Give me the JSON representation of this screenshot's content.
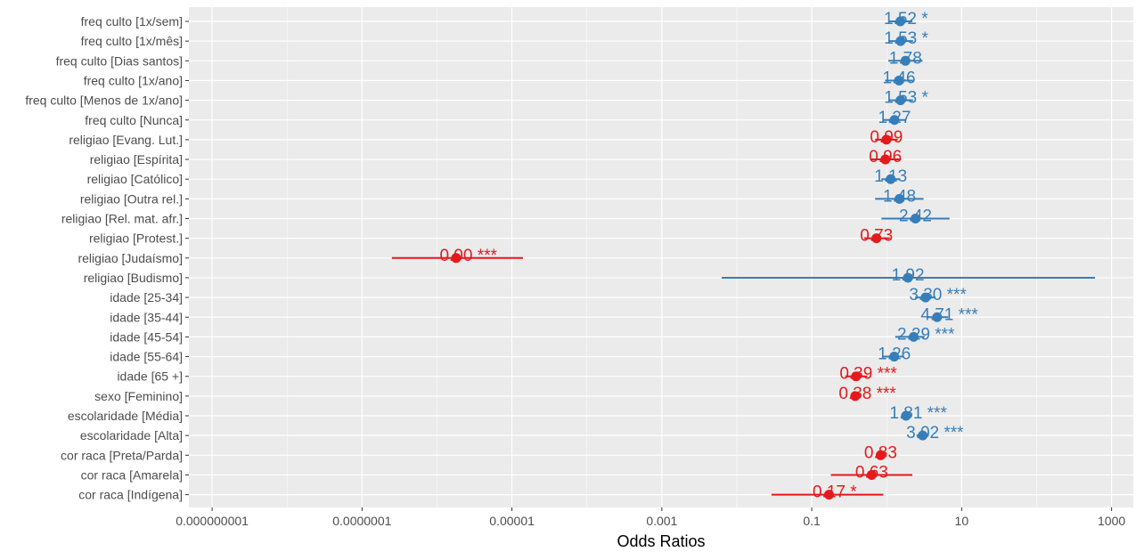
{
  "chart_data": {
    "type": "forest",
    "xlabel": "Odds Ratios",
    "x_scale": "log10",
    "xlim": [
      1e-09,
      1000
    ],
    "x_ticks": [
      {
        "value": 1e-09,
        "label": "0.000000001"
      },
      {
        "value": 1e-07,
        "label": "0.0000001"
      },
      {
        "value": 1e-05,
        "label": "0.00001"
      },
      {
        "value": 0.001,
        "label": "0.001"
      },
      {
        "value": 0.1,
        "label": "0.1"
      },
      {
        "value": 10,
        "label": "10"
      },
      {
        "value": 1000,
        "label": "1000"
      }
    ],
    "grid": true,
    "colors": {
      "positive": "#377eb8",
      "negative": "#e41a1c",
      "panel": "#ebebeb",
      "grid": "#ffffff"
    },
    "rows": [
      {
        "term": "freq culto [1x/sem]",
        "or": 1.52,
        "low": 1.05,
        "high": 2.2,
        "label": "1.52 *"
      },
      {
        "term": "freq culto [1x/mês]",
        "or": 1.53,
        "low": 1.05,
        "high": 2.25,
        "label": "1.53 *"
      },
      {
        "term": "freq culto [Dias santos]",
        "or": 1.78,
        "low": 1.05,
        "high": 3.0,
        "label": "1.78"
      },
      {
        "term": "freq culto [1x/ano]",
        "or": 1.46,
        "low": 0.95,
        "high": 2.25,
        "label": "1.46"
      },
      {
        "term": "freq culto [Menos de 1x/ano]",
        "or": 1.53,
        "low": 1.05,
        "high": 2.25,
        "label": "1.53 *"
      },
      {
        "term": "freq culto [Nunca]",
        "or": 1.27,
        "low": 0.9,
        "high": 1.8,
        "label": "1.27"
      },
      {
        "term": "religiao [Evang. Lut.]",
        "or": 0.99,
        "low": 0.7,
        "high": 1.4,
        "label": "0.99"
      },
      {
        "term": "religiao [Espírita]",
        "or": 0.96,
        "low": 0.6,
        "high": 1.55,
        "label": "0.96"
      },
      {
        "term": "religiao [Católico]",
        "or": 1.13,
        "low": 0.85,
        "high": 1.5,
        "label": "1.13"
      },
      {
        "term": "religiao [Outra rel.]",
        "or": 1.48,
        "low": 0.7,
        "high": 3.1,
        "label": "1.48"
      },
      {
        "term": "religiao [Rel. mat. afr.]",
        "or": 2.42,
        "low": 0.85,
        "high": 6.9,
        "label": "2.42"
      },
      {
        "term": "religiao [Protest.]",
        "or": 0.73,
        "low": 0.5,
        "high": 1.1,
        "label": "0.73"
      },
      {
        "term": "religiao [Judaísmo]",
        "or": 1.8e-06,
        "low": 2.5e-07,
        "high": 1.4e-05,
        "label": "0.00 ***"
      },
      {
        "term": "religiao [Budismo]",
        "or": 1.92,
        "low": 0.0063,
        "high": 600,
        "label": "1.92"
      },
      {
        "term": "idade [25-34]",
        "or": 3.3,
        "low": 2.4,
        "high": 4.5,
        "label": "3.30 ***"
      },
      {
        "term": "idade [35-44]",
        "or": 4.71,
        "low": 3.4,
        "high": 6.6,
        "label": "4.71 ***"
      },
      {
        "term": "idade [45-54]",
        "or": 2.29,
        "low": 1.3,
        "high": 3.2,
        "label": "2.29 ***"
      },
      {
        "term": "idade [55-64]",
        "or": 1.26,
        "low": 0.9,
        "high": 1.7,
        "label": "1.26"
      },
      {
        "term": "idade [65 +]",
        "or": 0.39,
        "low": 0.28,
        "high": 0.55,
        "label": "0.39 ***"
      },
      {
        "term": "sexo [Feminino]",
        "or": 0.38,
        "low": 0.33,
        "high": 0.45,
        "label": "0.38 ***"
      },
      {
        "term": "escolaridade [Média]",
        "or": 1.81,
        "low": 1.55,
        "high": 2.1,
        "label": "1.81 ***"
      },
      {
        "term": "escolaridade [Alta]",
        "or": 3.02,
        "low": 2.5,
        "high": 3.65,
        "label": "3.02 ***"
      },
      {
        "term": "cor raca [Preta/Parda]",
        "or": 0.83,
        "low": 0.72,
        "high": 0.96,
        "label": "0.83"
      },
      {
        "term": "cor raca [Amarela]",
        "or": 0.63,
        "low": 0.18,
        "high": 2.2,
        "label": "0.63"
      },
      {
        "term": "cor raca [Indígena]",
        "or": 0.17,
        "low": 0.029,
        "high": 0.9,
        "label": "0.17 *"
      }
    ]
  }
}
